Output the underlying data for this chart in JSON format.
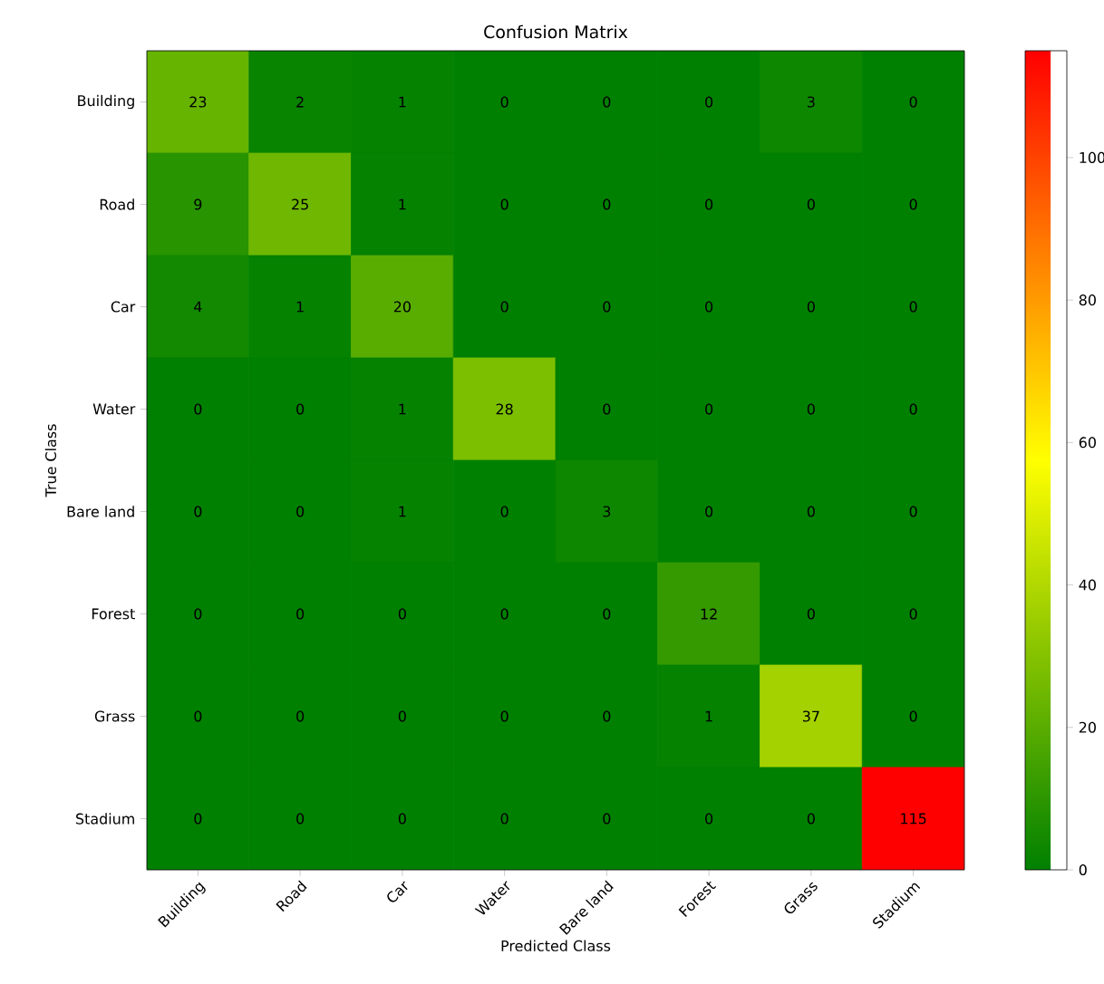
{
  "chart_data": {
    "type": "heatmap",
    "title": "Confusion Matrix",
    "xlabel": "Predicted Class",
    "ylabel": "True Class",
    "categories": [
      "Building",
      "Road",
      "Car",
      "Water",
      "Bare land",
      "Forest",
      "Grass",
      "Stadium"
    ],
    "y_categories": [
      "Building",
      "Road",
      "Car",
      "Water",
      "Bare land",
      "Forest",
      "Grass",
      "Stadium"
    ],
    "cells": [
      [
        23,
        2,
        1,
        0,
        0,
        0,
        3,
        0
      ],
      [
        9,
        25,
        1,
        0,
        0,
        0,
        0,
        0
      ],
      [
        4,
        1,
        20,
        0,
        0,
        0,
        0,
        0
      ],
      [
        0,
        0,
        1,
        28,
        0,
        0,
        0,
        0
      ],
      [
        0,
        0,
        1,
        0,
        3,
        0,
        0,
        0
      ],
      [
        0,
        0,
        0,
        0,
        0,
        12,
        0,
        0
      ],
      [
        0,
        0,
        0,
        0,
        0,
        1,
        37,
        0
      ],
      [
        0,
        0,
        0,
        0,
        0,
        0,
        0,
        115
      ]
    ],
    "data_labels": true,
    "clim": [
      0,
      115
    ],
    "cticks": [
      0,
      20,
      40,
      60,
      80,
      100
    ]
  }
}
